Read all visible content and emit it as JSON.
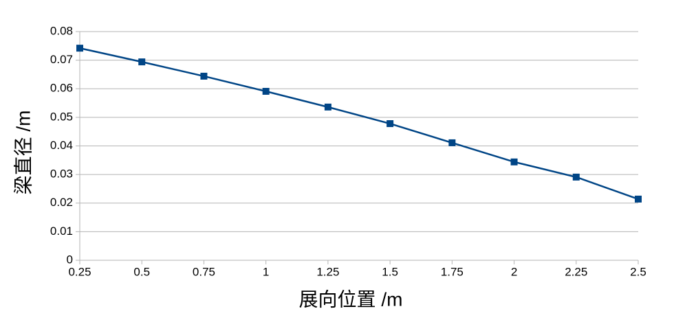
{
  "chart_data": {
    "type": "line",
    "x_label": "展向位置 /m",
    "y_label": "梁直径 /m",
    "x": [
      0.25,
      0.5,
      0.75,
      1,
      1.25,
      1.5,
      1.75,
      2,
      2.25,
      2.5
    ],
    "series": [
      {
        "color": "#004586",
        "values": [
          0.0742,
          0.0694,
          0.0644,
          0.0591,
          0.0536,
          0.0478,
          0.0411,
          0.0344,
          0.0291,
          0.0214
        ]
      }
    ],
    "xlim": [
      0.25,
      2.5
    ],
    "xticks": [
      0.25,
      0.5,
      0.75,
      1,
      1.25,
      1.5,
      1.75,
      2,
      2.25,
      2.5
    ],
    "ylim": [
      0,
      0.08
    ],
    "yticks": [
      0,
      0.01,
      0.02,
      0.03,
      0.04,
      0.05,
      0.06,
      0.07,
      0.08
    ],
    "grid": true
  }
}
